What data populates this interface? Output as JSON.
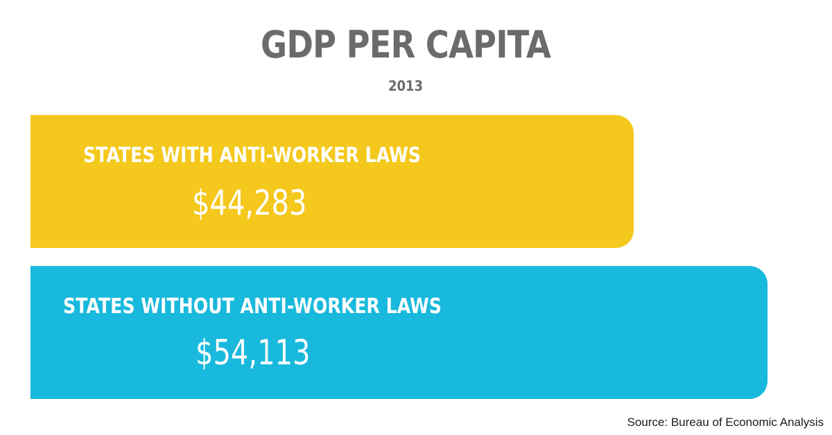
{
  "chart_data": {
    "type": "bar",
    "orientation": "horizontal",
    "title": "GDP PER CAPITA",
    "subtitle": "2013",
    "categories": [
      "STATES WITH ANTI-WORKER LAWS",
      "STATES WITHOUT ANTI-WORKER LAWS"
    ],
    "values": [
      44283,
      54113
    ],
    "value_labels": [
      "$44,283",
      "$54,113"
    ],
    "colors": [
      "#f4c81c",
      "#18b9dc"
    ],
    "xlim": [
      0,
      55000
    ],
    "source": "Source: Bureau of Economic Analysis"
  }
}
